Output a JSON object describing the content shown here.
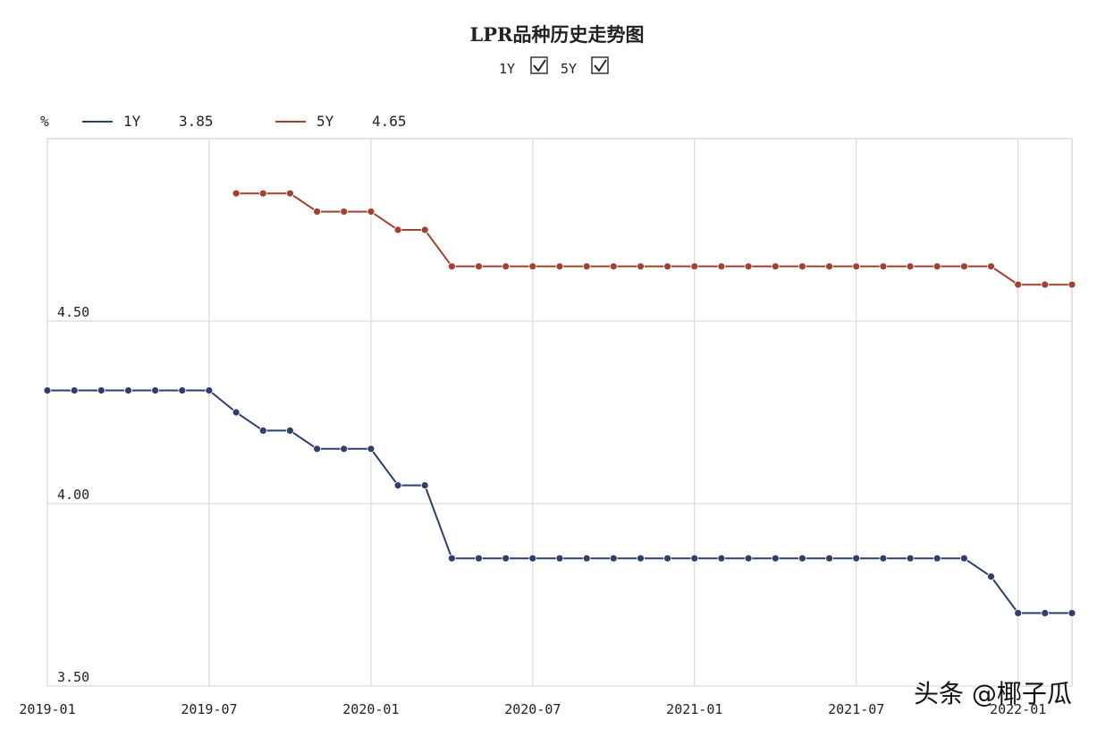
{
  "watermark": "头条 @椰子瓜",
  "chart_data": {
    "type": "line",
    "title": "LPR品种历史走势图",
    "toggles": [
      {
        "label": "1Y",
        "checked": true
      },
      {
        "label": "5Y",
        "checked": true
      }
    ],
    "unit_label": "%",
    "legend": [
      {
        "name": "1Y",
        "value": "3.85",
        "color": "#2e3f6e"
      },
      {
        "name": "5Y",
        "value": "4.65",
        "color": "#a2412c"
      }
    ],
    "ylim": [
      3.5,
      5.0
    ],
    "y_ticks": [
      {
        "value": 3.5,
        "label": "3.50"
      },
      {
        "value": 4.0,
        "label": "4.00"
      },
      {
        "value": 4.5,
        "label": "4.50"
      }
    ],
    "x_range": [
      "2019-01",
      "2022-03"
    ],
    "x_ticks": [
      "2019-01",
      "2019-07",
      "2020-01",
      "2020-07",
      "2021-01",
      "2021-07",
      "2022-01"
    ],
    "grid": true,
    "series": [
      {
        "name": "1Y",
        "color": "#2e3f6e",
        "points": [
          [
            "2019-01",
            4.31
          ],
          [
            "2019-02",
            4.31
          ],
          [
            "2019-03",
            4.31
          ],
          [
            "2019-04",
            4.31
          ],
          [
            "2019-05",
            4.31
          ],
          [
            "2019-06",
            4.31
          ],
          [
            "2019-07",
            4.31
          ],
          [
            "2019-08",
            4.25
          ],
          [
            "2019-09",
            4.2
          ],
          [
            "2019-10",
            4.2
          ],
          [
            "2019-11",
            4.15
          ],
          [
            "2019-12",
            4.15
          ],
          [
            "2020-01",
            4.15
          ],
          [
            "2020-02",
            4.05
          ],
          [
            "2020-03",
            4.05
          ],
          [
            "2020-04",
            3.85
          ],
          [
            "2020-05",
            3.85
          ],
          [
            "2020-06",
            3.85
          ],
          [
            "2020-07",
            3.85
          ],
          [
            "2020-08",
            3.85
          ],
          [
            "2020-09",
            3.85
          ],
          [
            "2020-10",
            3.85
          ],
          [
            "2020-11",
            3.85
          ],
          [
            "2020-12",
            3.85
          ],
          [
            "2021-01",
            3.85
          ],
          [
            "2021-02",
            3.85
          ],
          [
            "2021-03",
            3.85
          ],
          [
            "2021-04",
            3.85
          ],
          [
            "2021-05",
            3.85
          ],
          [
            "2021-06",
            3.85
          ],
          [
            "2021-07",
            3.85
          ],
          [
            "2021-08",
            3.85
          ],
          [
            "2021-09",
            3.85
          ],
          [
            "2021-10",
            3.85
          ],
          [
            "2021-11",
            3.85
          ],
          [
            "2021-12",
            3.8
          ],
          [
            "2022-01",
            3.7
          ],
          [
            "2022-02",
            3.7
          ],
          [
            "2022-03",
            3.7
          ]
        ]
      },
      {
        "name": "5Y",
        "color": "#a2412c",
        "points": [
          [
            "2019-08",
            4.85
          ],
          [
            "2019-09",
            4.85
          ],
          [
            "2019-10",
            4.85
          ],
          [
            "2019-11",
            4.8
          ],
          [
            "2019-12",
            4.8
          ],
          [
            "2020-01",
            4.8
          ],
          [
            "2020-02",
            4.75
          ],
          [
            "2020-03",
            4.75
          ],
          [
            "2020-04",
            4.65
          ],
          [
            "2020-05",
            4.65
          ],
          [
            "2020-06",
            4.65
          ],
          [
            "2020-07",
            4.65
          ],
          [
            "2020-08",
            4.65
          ],
          [
            "2020-09",
            4.65
          ],
          [
            "2020-10",
            4.65
          ],
          [
            "2020-11",
            4.65
          ],
          [
            "2020-12",
            4.65
          ],
          [
            "2021-01",
            4.65
          ],
          [
            "2021-02",
            4.65
          ],
          [
            "2021-03",
            4.65
          ],
          [
            "2021-04",
            4.65
          ],
          [
            "2021-05",
            4.65
          ],
          [
            "2021-06",
            4.65
          ],
          [
            "2021-07",
            4.65
          ],
          [
            "2021-08",
            4.65
          ],
          [
            "2021-09",
            4.65
          ],
          [
            "2021-10",
            4.65
          ],
          [
            "2021-11",
            4.65
          ],
          [
            "2021-12",
            4.65
          ],
          [
            "2022-01",
            4.6
          ],
          [
            "2022-02",
            4.6
          ],
          [
            "2022-03",
            4.6
          ]
        ]
      }
    ]
  }
}
